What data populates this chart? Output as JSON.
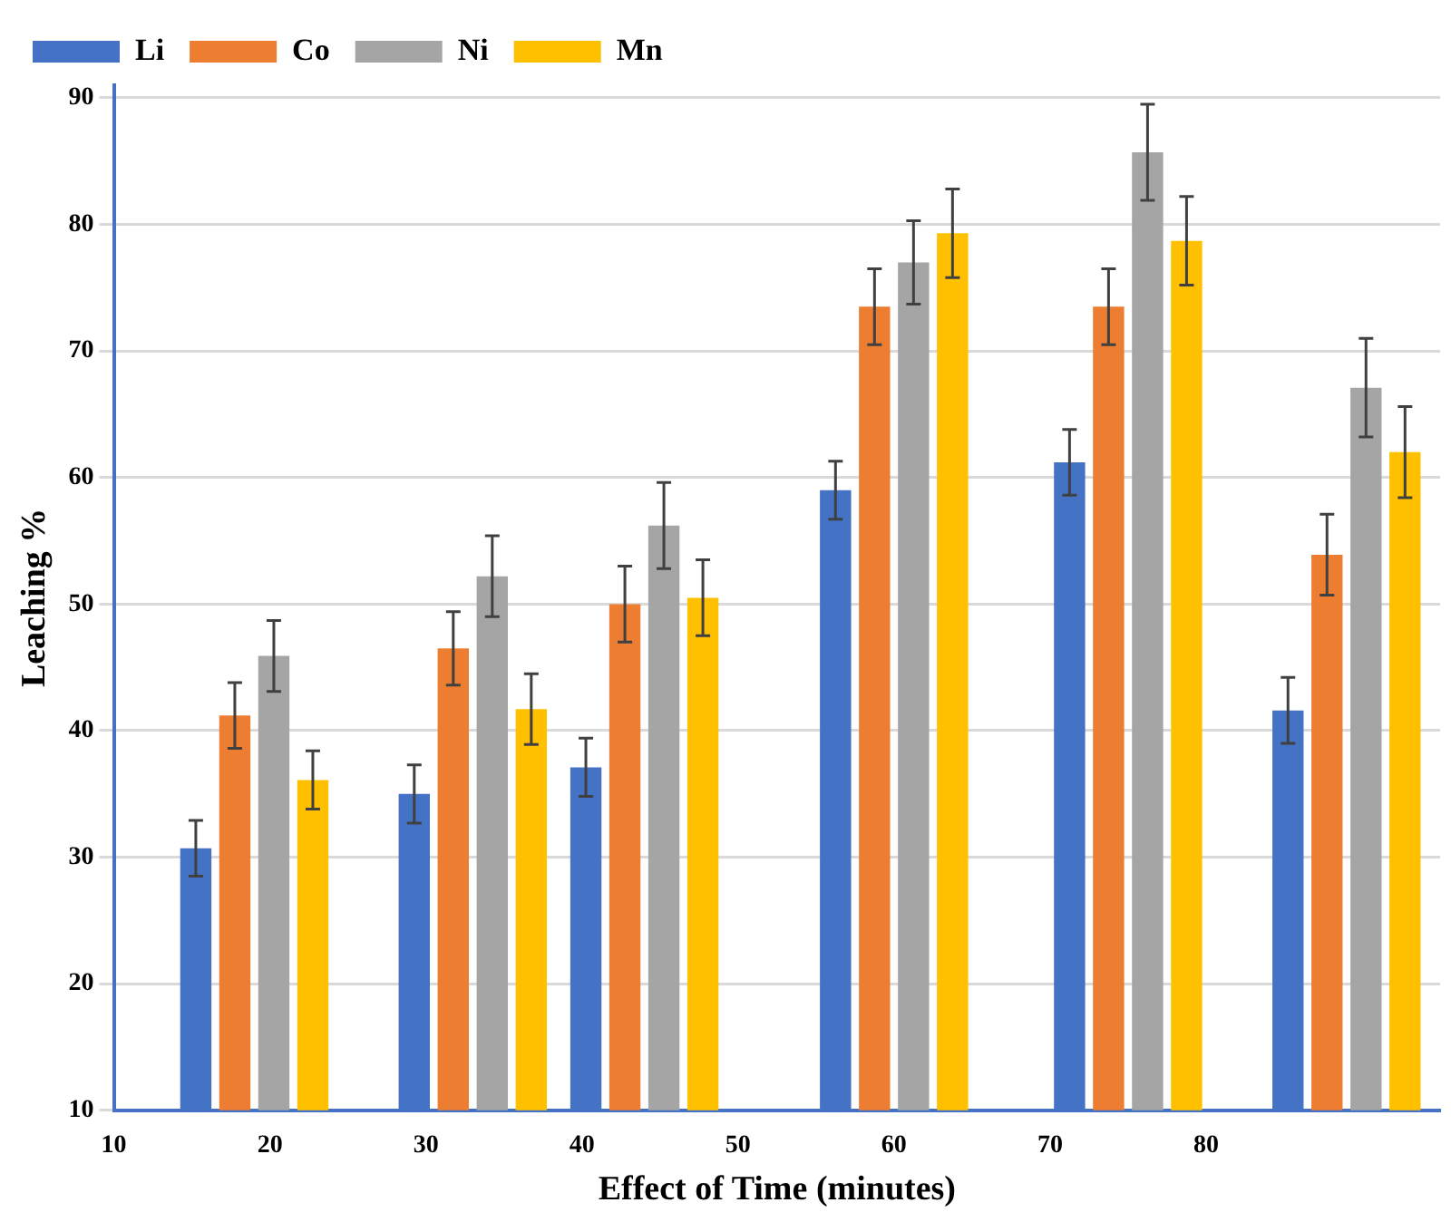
{
  "chart_data": {
    "type": "bar",
    "xlabel": "Effect of Time (minutes)",
    "ylabel": "Leaching %",
    "x": [
      19,
      33,
      44,
      60,
      75,
      89
    ],
    "xlim": [
      10,
      95
    ],
    "xticks": [
      10,
      20,
      30,
      40,
      50,
      60,
      70,
      80
    ],
    "ylim": [
      10,
      91
    ],
    "yticks": [
      10,
      20,
      30,
      40,
      50,
      60,
      70,
      80,
      90
    ],
    "series": [
      {
        "name": "Li",
        "color": "#4472c4",
        "values": [
          30.7,
          35,
          37.1,
          59,
          61.2,
          41.6
        ],
        "errors": [
          2.2,
          2.3,
          2.3,
          2.3,
          2.6,
          2.6
        ]
      },
      {
        "name": "Co",
        "color": "#ed7d31",
        "values": [
          41.2,
          46.5,
          50,
          73.5,
          73.5,
          53.9
        ],
        "errors": [
          2.6,
          2.9,
          3,
          3,
          3,
          3.2
        ]
      },
      {
        "name": "Ni",
        "color": "#a5a5a5",
        "values": [
          45.9,
          52.2,
          56.2,
          77,
          85.7,
          67.1
        ],
        "errors": [
          2.8,
          3.2,
          3.4,
          3.3,
          3.8,
          3.9
        ]
      },
      {
        "name": "Mn",
        "color": "#ffc000",
        "values": [
          36.1,
          41.7,
          50.5,
          79.3,
          78.7,
          62
        ],
        "errors": [
          2.3,
          2.8,
          3,
          3.5,
          3.5,
          3.6
        ]
      }
    ],
    "grid": "y",
    "legend": "top left"
  }
}
